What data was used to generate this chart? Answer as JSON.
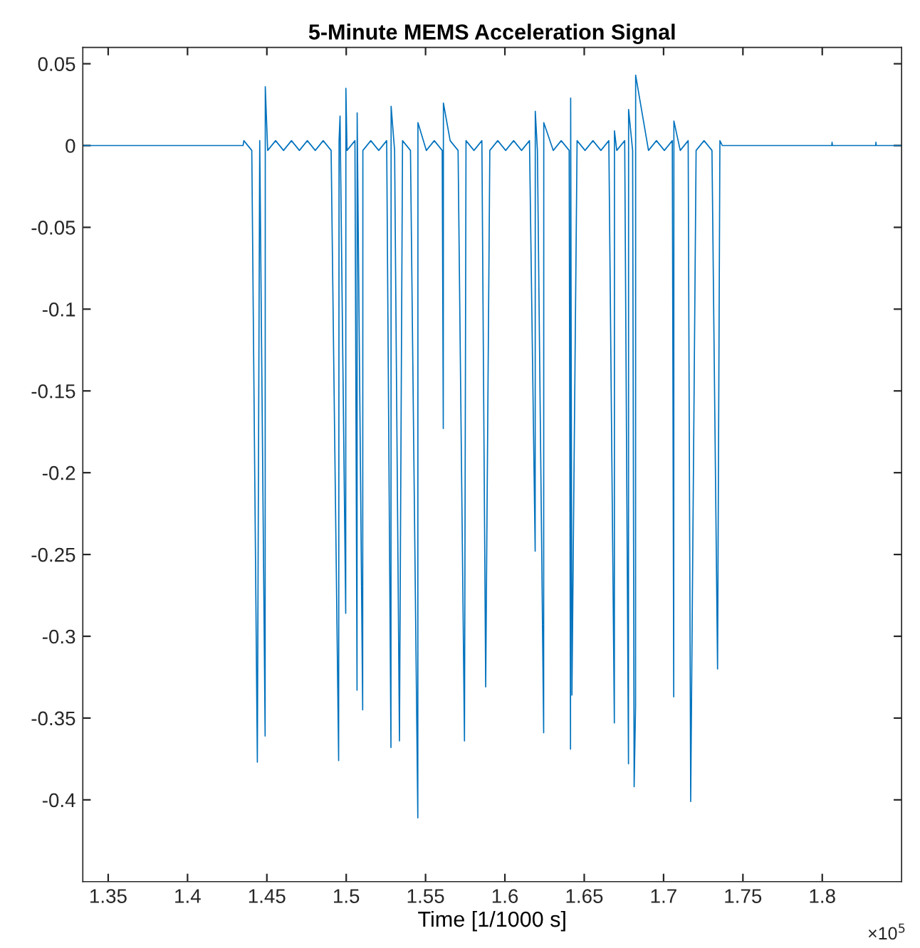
{
  "chart_data": {
    "type": "line",
    "title": "5-Minute MEMS Acceleration Signal",
    "xlabel": "Time [1/1000 s]",
    "annotations": [
      "×10$^{5}$"
    ],
    "xlim": [
      1.334,
      1.85
    ],
    "ylim": [
      -0.45,
      0.06
    ],
    "xticks": [
      1.35,
      1.4,
      1.45,
      1.5,
      1.55,
      1.6,
      1.65,
      1.7,
      1.75,
      1.8
    ],
    "yticks": [
      0.05,
      0,
      -0.05,
      -0.1,
      -0.15,
      -0.2,
      -0.25,
      -0.3,
      -0.35,
      -0.4
    ],
    "grid": false,
    "marker": "none",
    "line_style": "solid",
    "series": [
      {
        "color": "#0072bd",
        "x": [
          1.334,
          1.435,
          1.4355,
          1.4405,
          1.444,
          1.4455,
          1.4489,
          1.449,
          1.4505,
          1.4555,
          1.4605,
          1.4655,
          1.4705,
          1.4755,
          1.4805,
          1.4855,
          1.4905,
          1.49523,
          1.4955,
          1.49612,
          1.49969,
          1.4998,
          1.5005,
          1.5055,
          1.50682,
          1.5069,
          1.51038,
          1.5105,
          1.5155,
          1.5205,
          1.5255,
          1.5282,
          1.5283,
          1.5305,
          1.53355,
          1.5355,
          1.5405,
          1.54513,
          1.5452,
          1.5505,
          1.5555,
          1.5605,
          1.56117,
          1.56125,
          1.5655,
          1.5705,
          1.57453,
          1.5755,
          1.5805,
          1.5855,
          1.5879,
          1.5905,
          1.5955,
          1.6005,
          1.6055,
          1.6105,
          1.6155,
          1.61908,
          1.61915,
          1.6205,
          1.62443,
          1.6245,
          1.6305,
          1.6355,
          1.6405,
          1.64136,
          1.64145,
          1.64225,
          1.6455,
          1.6505,
          1.6555,
          1.6605,
          1.6655,
          1.66898,
          1.66905,
          1.6705,
          1.6755,
          1.67789,
          1.67795,
          1.6805,
          1.68145,
          1.68234,
          1.6824,
          1.6905,
          1.6955,
          1.7005,
          1.7055,
          1.7064,
          1.7065,
          1.7105,
          1.7155,
          1.71709,
          1.7205,
          1.7255,
          1.7305,
          1.73402,
          1.7355,
          1.737,
          1.806,
          1.80619,
          1.8064,
          1.8337,
          1.83381,
          1.834,
          1.85
        ],
        "values": [
          0,
          0,
          0.003,
          -0.003,
          -0.377,
          0.003,
          -0.361,
          0.036,
          -0.003,
          0.003,
          -0.003,
          0.003,
          -0.003,
          0.003,
          -0.003,
          0.003,
          -0.003,
          -0.376,
          0.003,
          0.018,
          -0.286,
          0.035,
          -0.003,
          0.003,
          -0.333,
          0.02,
          -0.345,
          -0.003,
          0.003,
          -0.003,
          0.003,
          -0.368,
          0.024,
          -0.003,
          -0.364,
          0.003,
          -0.003,
          -0.411,
          0.014,
          -0.003,
          0.003,
          -0.003,
          -0.173,
          0.026,
          0.003,
          -0.003,
          -0.364,
          0.003,
          -0.003,
          0.003,
          -0.331,
          -0.003,
          0.003,
          -0.003,
          0.003,
          -0.003,
          0.003,
          -0.248,
          0.021,
          -0.003,
          -0.359,
          0.014,
          -0.003,
          0.003,
          -0.003,
          -0.369,
          0.029,
          -0.336,
          0.003,
          -0.003,
          0.003,
          -0.003,
          0.003,
          -0.353,
          0.009,
          -0.003,
          0.003,
          -0.378,
          0.022,
          -0.003,
          -0.392,
          -0.343,
          0.043,
          -0.003,
          0.003,
          -0.003,
          0.003,
          -0.337,
          0.015,
          -0.003,
          0.003,
          -0.401,
          -0.003,
          0.003,
          -0.003,
          -0.32,
          0.003,
          0,
          0,
          0.002,
          0,
          0,
          0.002,
          0,
          0
        ]
      }
    ]
  }
}
